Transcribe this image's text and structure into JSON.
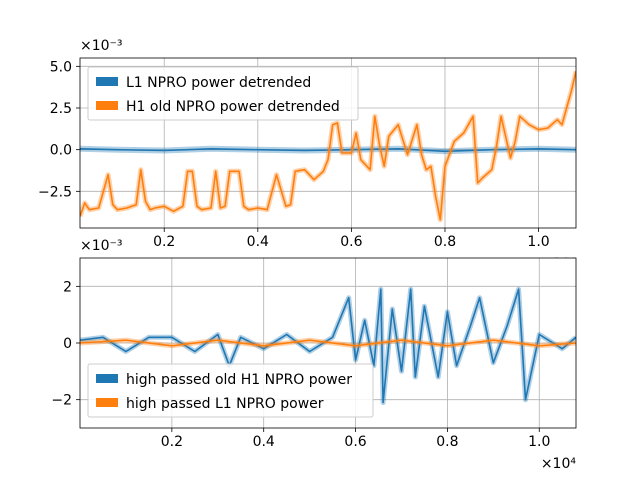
{
  "chart_data": [
    {
      "type": "line",
      "title": "",
      "xlabel": "",
      "ylabel": "",
      "x_multiplier": "×10⁴",
      "y_multiplier": "×10⁻³",
      "xlim": [
        0.02,
        1.08
      ],
      "ylim": [
        -4.7,
        5.5
      ],
      "x_ticks": [
        0.2,
        0.4,
        0.6,
        0.8,
        1.0
      ],
      "x_tick_labels": [
        "0.2",
        "0.4",
        "0.6",
        "0.8",
        "1.0"
      ],
      "y_ticks": [
        -2.5,
        0.0,
        2.5,
        5.0
      ],
      "y_tick_labels": [
        "−2.5",
        "0.0",
        "2.5",
        "5.0"
      ],
      "grid": true,
      "legend_position": "upper-left",
      "series": [
        {
          "name": "L1 NPRO power detrended",
          "color": "#1f77b4",
          "x": [
            0.02,
            0.1,
            0.2,
            0.3,
            0.4,
            0.5,
            0.6,
            0.7,
            0.8,
            0.9,
            1.0,
            1.08
          ],
          "y": [
            0.05,
            0.0,
            -0.05,
            0.05,
            0.0,
            -0.05,
            0.0,
            0.05,
            -0.1,
            0.0,
            0.05,
            0.0
          ]
        },
        {
          "name": "H1 old NPRO power detrended",
          "color": "#ff7f0e",
          "x": [
            0.02,
            0.03,
            0.04,
            0.06,
            0.08,
            0.09,
            0.1,
            0.12,
            0.14,
            0.15,
            0.16,
            0.17,
            0.18,
            0.2,
            0.22,
            0.24,
            0.25,
            0.26,
            0.27,
            0.28,
            0.3,
            0.31,
            0.32,
            0.33,
            0.34,
            0.36,
            0.37,
            0.38,
            0.4,
            0.42,
            0.44,
            0.46,
            0.47,
            0.48,
            0.5,
            0.52,
            0.54,
            0.55,
            0.56,
            0.57,
            0.58,
            0.6,
            0.61,
            0.62,
            0.64,
            0.65,
            0.66,
            0.67,
            0.68,
            0.7,
            0.72,
            0.74,
            0.75,
            0.76,
            0.77,
            0.78,
            0.79,
            0.8,
            0.82,
            0.84,
            0.86,
            0.87,
            0.88,
            0.9,
            0.91,
            0.92,
            0.94,
            0.95,
            0.96,
            0.98,
            1.0,
            1.02,
            1.04,
            1.05,
            1.06,
            1.07,
            1.08
          ],
          "y": [
            -4.0,
            -3.2,
            -3.6,
            -3.5,
            -1.5,
            -3.3,
            -3.6,
            -3.5,
            -3.3,
            -1.2,
            -3.1,
            -3.6,
            -3.5,
            -3.4,
            -3.7,
            -3.4,
            -1.3,
            -1.3,
            -3.4,
            -3.6,
            -3.5,
            -1.3,
            -3.5,
            -3.4,
            -1.3,
            -1.3,
            -3.4,
            -3.6,
            -3.5,
            -3.6,
            -1.5,
            -3.4,
            -3.3,
            -1.3,
            -1.2,
            -1.8,
            -1.3,
            -0.6,
            1.5,
            1.6,
            -0.2,
            -0.2,
            1.0,
            -0.6,
            -1.2,
            2.0,
            0.3,
            -1.0,
            0.8,
            1.5,
            -0.3,
            1.5,
            -0.3,
            -1.2,
            -1.0,
            -2.8,
            -4.2,
            -1.0,
            0.5,
            1.0,
            2.0,
            -2.0,
            -1.7,
            -1.2,
            0.2,
            2.0,
            -0.5,
            0.5,
            2.0,
            1.5,
            1.2,
            1.3,
            1.8,
            1.5,
            2.5,
            3.5,
            4.7
          ]
        }
      ]
    },
    {
      "type": "line",
      "title": "",
      "xlabel": "",
      "ylabel": "",
      "x_multiplier": "×10⁴",
      "y_multiplier": "×10⁻³",
      "xlim": [
        0.0,
        1.08
      ],
      "ylim": [
        -3.0,
        3.0
      ],
      "x_ticks": [
        0.2,
        0.4,
        0.6,
        0.8,
        1.0
      ],
      "x_tick_labels": [
        "0.2",
        "0.4",
        "0.6",
        "0.8",
        "1.0"
      ],
      "y_ticks": [
        -2,
        0,
        2
      ],
      "y_tick_labels": [
        "−2",
        "0",
        "2"
      ],
      "grid": true,
      "legend_position": "lower-left",
      "series": [
        {
          "name": "high passed old H1 NPRO power",
          "color": "#1f77b4",
          "x": [
            0.0,
            0.05,
            0.1,
            0.15,
            0.2,
            0.25,
            0.3,
            0.325,
            0.35,
            0.4,
            0.45,
            0.5,
            0.55,
            0.585,
            0.6,
            0.62,
            0.64,
            0.655,
            0.66,
            0.68,
            0.7,
            0.72,
            0.73,
            0.75,
            0.78,
            0.8,
            0.82,
            0.85,
            0.87,
            0.9,
            0.93,
            0.955,
            0.97,
            1.0,
            1.05,
            1.08
          ],
          "y": [
            0.1,
            0.2,
            -0.3,
            0.2,
            0.2,
            -0.3,
            0.3,
            -0.8,
            0.2,
            -0.2,
            0.3,
            -0.3,
            0.2,
            1.6,
            -0.6,
            0.8,
            -0.8,
            1.9,
            -2.1,
            1.2,
            -1.0,
            1.9,
            -1.2,
            1.3,
            -1.2,
            1.1,
            -0.8,
            0.6,
            1.6,
            -0.7,
            0.6,
            1.9,
            -2.0,
            0.3,
            -0.2,
            0.2
          ]
        },
        {
          "name": "high passed L1 NPRO power",
          "color": "#ff7f0e",
          "x": [
            0.0,
            0.1,
            0.2,
            0.3,
            0.4,
            0.5,
            0.6,
            0.7,
            0.8,
            0.9,
            1.0,
            1.08
          ],
          "y": [
            0.0,
            0.1,
            -0.1,
            0.1,
            -0.1,
            0.1,
            -0.1,
            0.1,
            -0.1,
            0.1,
            -0.1,
            0.0
          ]
        }
      ]
    }
  ]
}
